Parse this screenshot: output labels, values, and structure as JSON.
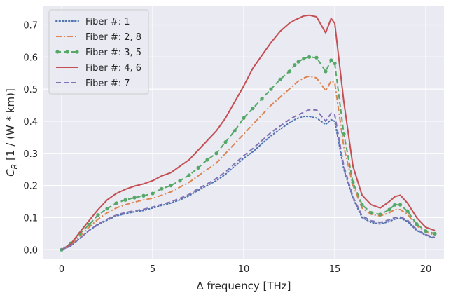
{
  "chart_data": {
    "type": "line",
    "title": "",
    "xlabel": "Δ frequency [THz]",
    "ylabel_main": "C",
    "ylabel_sub": "R",
    "ylabel_rest": " [1 / (W * km)]",
    "xlim": [
      -1.0,
      21.0
    ],
    "ylim": [
      -0.03,
      0.76
    ],
    "xticks": [
      0,
      5,
      10,
      15,
      20
    ],
    "yticks": [
      0.0,
      0.1,
      0.2,
      0.3,
      0.4,
      0.5,
      0.6,
      0.7
    ],
    "grid": true,
    "legend_placement": "top-left",
    "background": "#eaeaf2",
    "x": [
      0,
      0.5,
      1,
      1.5,
      2,
      2.5,
      3,
      3.5,
      4,
      4.5,
      5,
      5.5,
      6,
      6.5,
      7,
      7.5,
      8,
      8.5,
      9,
      9.5,
      10,
      10.5,
      11,
      11.5,
      12,
      12.5,
      12.8,
      13,
      13.3,
      13.6,
      14,
      14.5,
      14.8,
      15,
      15.5,
      16,
      16.5,
      17,
      17.5,
      18,
      18.3,
      18.6,
      19,
      19.5,
      20,
      20.5
    ],
    "series": [
      {
        "name": "Fiber #: 1",
        "color": "#4c72b0",
        "dash": "dotted",
        "markers": false,
        "values": [
          0.0,
          0.012,
          0.035,
          0.06,
          0.078,
          0.092,
          0.105,
          0.112,
          0.118,
          0.122,
          0.13,
          0.138,
          0.145,
          0.155,
          0.168,
          0.185,
          0.2,
          0.215,
          0.235,
          0.26,
          0.285,
          0.305,
          0.33,
          0.355,
          0.375,
          0.395,
          0.405,
          0.41,
          0.415,
          0.415,
          0.41,
          0.39,
          0.405,
          0.4,
          0.25,
          0.16,
          0.1,
          0.085,
          0.08,
          0.088,
          0.095,
          0.098,
          0.088,
          0.06,
          0.045,
          0.035
        ]
      },
      {
        "name": "Fiber #: 2, 8",
        "color": "#dd8452",
        "dash": "dashdot",
        "markers": false,
        "values": [
          0.0,
          0.015,
          0.042,
          0.07,
          0.095,
          0.115,
          0.13,
          0.14,
          0.148,
          0.155,
          0.16,
          0.17,
          0.18,
          0.195,
          0.21,
          0.23,
          0.25,
          0.27,
          0.3,
          0.33,
          0.36,
          0.39,
          0.42,
          0.45,
          0.475,
          0.5,
          0.515,
          0.525,
          0.535,
          0.54,
          0.535,
          0.495,
          0.525,
          0.52,
          0.32,
          0.2,
          0.13,
          0.11,
          0.105,
          0.115,
          0.125,
          0.125,
          0.11,
          0.075,
          0.055,
          0.045
        ]
      },
      {
        "name": "Fiber #: 3, 5",
        "color": "#55a868",
        "dash": "dashed",
        "markers": true,
        "values": [
          0.0,
          0.02,
          0.05,
          0.078,
          0.108,
          0.128,
          0.145,
          0.155,
          0.162,
          0.168,
          0.175,
          0.19,
          0.2,
          0.215,
          0.232,
          0.255,
          0.28,
          0.3,
          0.335,
          0.37,
          0.41,
          0.44,
          0.47,
          0.5,
          0.53,
          0.555,
          0.575,
          0.585,
          0.595,
          0.6,
          0.598,
          0.555,
          0.59,
          0.58,
          0.36,
          0.21,
          0.14,
          0.115,
          0.11,
          0.125,
          0.14,
          0.14,
          0.12,
          0.08,
          0.058,
          0.05
        ]
      },
      {
        "name": "Fiber #: 4, 6",
        "color": "#c44e52",
        "dash": "solid",
        "markers": false,
        "values": [
          0.0,
          0.018,
          0.055,
          0.09,
          0.125,
          0.155,
          0.175,
          0.188,
          0.198,
          0.205,
          0.215,
          0.23,
          0.24,
          0.26,
          0.28,
          0.31,
          0.34,
          0.37,
          0.41,
          0.46,
          0.51,
          0.565,
          0.605,
          0.645,
          0.68,
          0.705,
          0.715,
          0.72,
          0.728,
          0.73,
          0.725,
          0.675,
          0.72,
          0.705,
          0.46,
          0.26,
          0.17,
          0.14,
          0.13,
          0.15,
          0.165,
          0.17,
          0.145,
          0.1,
          0.07,
          0.06
        ]
      },
      {
        "name": "Fiber #: 7",
        "color": "#8172b3",
        "dash": "dashed",
        "markers": false,
        "values": [
          0.0,
          0.013,
          0.035,
          0.06,
          0.08,
          0.095,
          0.108,
          0.116,
          0.121,
          0.126,
          0.133,
          0.141,
          0.149,
          0.16,
          0.172,
          0.19,
          0.205,
          0.222,
          0.242,
          0.268,
          0.293,
          0.315,
          0.34,
          0.365,
          0.385,
          0.405,
          0.415,
          0.42,
          0.428,
          0.436,
          0.435,
          0.4,
          0.425,
          0.42,
          0.26,
          0.165,
          0.105,
          0.09,
          0.085,
          0.093,
          0.1,
          0.102,
          0.092,
          0.063,
          0.047,
          0.038
        ]
      }
    ]
  }
}
